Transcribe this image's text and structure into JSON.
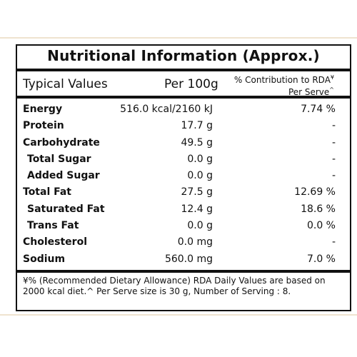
{
  "label": {
    "title": "Nutritional Information (Approx.)",
    "header": {
      "typical": "Typical Values",
      "per100": "Per 100g",
      "rda_line1": "% Contribution to RDA",
      "rda_mark": "¥",
      "rda_line2": "Per Serve",
      "serve_mark": "^"
    },
    "rows": [
      {
        "name": "Energy",
        "amount": "516.0 kcal/2160 kJ",
        "percent": "7.74 %",
        "sub": false
      },
      {
        "name": "Protein",
        "amount": "17.7 g",
        "percent": "-",
        "sub": false
      },
      {
        "name": "Carbohydrate",
        "amount": "49.5 g",
        "percent": "-",
        "sub": false
      },
      {
        "name": "Total Sugar",
        "amount": "0.0 g",
        "percent": "-",
        "sub": true
      },
      {
        "name": "Added Sugar",
        "amount": "0.0 g",
        "percent": "-",
        "sub": true
      },
      {
        "name": "Total Fat",
        "amount": "27.5 g",
        "percent": "12.69 %",
        "sub": false
      },
      {
        "name": "Saturated Fat",
        "amount": "12.4 g",
        "percent": "18.6 %",
        "sub": true
      },
      {
        "name": "Trans Fat",
        "amount": "0.0 g",
        "percent": "0.0 %",
        "sub": true
      },
      {
        "name": "Cholesterol",
        "amount": "0.0 mg",
        "percent": "-",
        "sub": false
      },
      {
        "name": "Sodium",
        "amount": "560.0 mg",
        "percent": "7.0 %",
        "sub": false
      }
    ],
    "footnote": "¥% (Recommended Dietary Allowance) RDA Daily Values are based on 2000 kcal diet.^ Per Serve size is 30 g, Number of Serving : 8."
  }
}
